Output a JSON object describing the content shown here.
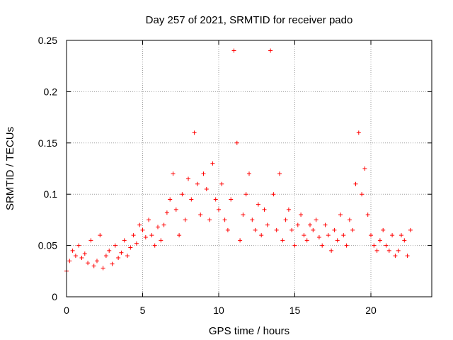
{
  "chart_data": {
    "type": "scatter",
    "title": "Day 257 of 2021, SRMTID for receiver pado",
    "xlabel": "GPS time / hours",
    "ylabel": "SRMTID / TECUs",
    "xlim": [
      0,
      24
    ],
    "ylim": [
      0,
      0.25
    ],
    "xticks": [
      0,
      5,
      10,
      15,
      20
    ],
    "xtick_labels": [
      "0",
      "5",
      "10",
      "15",
      "20"
    ],
    "yticks": [
      0,
      0.05,
      0.1,
      0.15,
      0.2,
      0.25
    ],
    "ytick_labels": [
      "0",
      "0.05",
      "0.1",
      "0.15",
      "0.2",
      "0.25"
    ],
    "grid": true,
    "marker": "+",
    "color": "#ff0000",
    "series": [
      {
        "name": "SRMTID",
        "x": [
          0.0,
          0.2,
          0.4,
          0.6,
          0.8,
          1.0,
          1.2,
          1.4,
          1.6,
          1.8,
          2.0,
          2.2,
          2.4,
          2.6,
          2.8,
          3.0,
          3.2,
          3.4,
          3.6,
          3.8,
          4.0,
          4.2,
          4.4,
          4.6,
          4.8,
          5.0,
          5.2,
          5.4,
          5.6,
          5.8,
          6.0,
          6.2,
          6.4,
          6.6,
          6.8,
          7.0,
          7.2,
          7.4,
          7.6,
          7.8,
          8.0,
          8.2,
          8.4,
          8.6,
          8.8,
          9.0,
          9.2,
          9.4,
          9.6,
          9.8,
          10.0,
          10.2,
          10.4,
          10.6,
          10.8,
          11.0,
          11.2,
          11.4,
          11.6,
          11.8,
          12.0,
          12.2,
          12.4,
          12.6,
          12.8,
          13.0,
          13.2,
          13.4,
          13.6,
          13.8,
          14.0,
          14.2,
          14.4,
          14.6,
          14.8,
          15.0,
          15.2,
          15.4,
          15.6,
          15.8,
          16.0,
          16.2,
          16.4,
          16.6,
          16.8,
          17.0,
          17.2,
          17.4,
          17.6,
          17.8,
          18.0,
          18.2,
          18.4,
          18.6,
          18.8,
          19.0,
          19.2,
          19.4,
          19.6,
          19.8,
          20.0,
          20.2,
          20.4,
          20.6,
          20.8,
          21.0,
          21.2,
          21.4,
          21.6,
          21.8,
          22.0,
          22.2,
          22.4,
          22.6
        ],
        "y": [
          0.025,
          0.035,
          0.045,
          0.04,
          0.05,
          0.038,
          0.042,
          0.033,
          0.055,
          0.03,
          0.035,
          0.06,
          0.028,
          0.04,
          0.045,
          0.032,
          0.05,
          0.038,
          0.043,
          0.055,
          0.04,
          0.048,
          0.06,
          0.052,
          0.07,
          0.065,
          0.058,
          0.075,
          0.06,
          0.05,
          0.068,
          0.055,
          0.07,
          0.082,
          0.095,
          0.12,
          0.085,
          0.06,
          0.1,
          0.075,
          0.115,
          0.095,
          0.16,
          0.11,
          0.08,
          0.12,
          0.105,
          0.075,
          0.13,
          0.095,
          0.085,
          0.11,
          0.075,
          0.065,
          0.095,
          0.24,
          0.15,
          0.055,
          0.08,
          0.1,
          0.12,
          0.075,
          0.065,
          0.09,
          0.06,
          0.085,
          0.07,
          0.24,
          0.1,
          0.065,
          0.12,
          0.055,
          0.075,
          0.085,
          0.065,
          0.05,
          0.07,
          0.08,
          0.06,
          0.055,
          0.07,
          0.065,
          0.075,
          0.058,
          0.05,
          0.07,
          0.06,
          0.045,
          0.065,
          0.055,
          0.08,
          0.06,
          0.05,
          0.075,
          0.065,
          0.11,
          0.16,
          0.1,
          0.125,
          0.08,
          0.06,
          0.05,
          0.045,
          0.055,
          0.065,
          0.05,
          0.045,
          0.06,
          0.04,
          0.045,
          0.06,
          0.055,
          0.04,
          0.065
        ]
      }
    ]
  }
}
